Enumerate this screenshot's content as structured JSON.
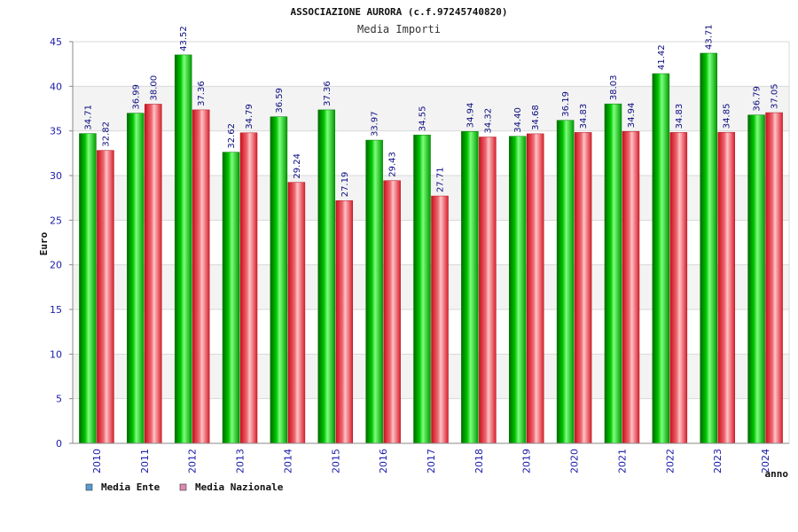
{
  "chart_data": {
    "type": "bar",
    "title": "ASSOCIAZIONE AURORA (c.f.97245740820)",
    "subtitle": "Media Importi",
    "ylabel": "Euro",
    "xlabel": "anno",
    "ylim": [
      0,
      45
    ],
    "yticks": [
      0,
      5,
      10,
      15,
      20,
      25,
      30,
      35,
      40,
      45
    ],
    "grid": true,
    "legend_position": "bottom-left",
    "categories": [
      "2010",
      "2011",
      "2012",
      "2013",
      "2014",
      "2015",
      "2016",
      "2017",
      "2018",
      "2019",
      "2020",
      "2021",
      "2022",
      "2023",
      "2024"
    ],
    "series": [
      {
        "name": "Media Ente",
        "legend_color": "#5b9bd5",
        "bar_color": "#00aa00",
        "values": [
          34.71,
          36.99,
          43.52,
          32.62,
          36.59,
          37.36,
          33.97,
          34.55,
          34.94,
          34.4,
          36.19,
          38.03,
          41.42,
          43.71,
          36.79
        ],
        "labels": [
          "34.71",
          "36.99",
          "43.52",
          "32.62",
          "36.59",
          "37.36",
          "33.97",
          "34.55",
          "34.94",
          "34.40",
          "36.19",
          "38.03",
          "41.42",
          "43.71",
          "36.79"
        ]
      },
      {
        "name": "Media Nazionale",
        "legend_color": "#e088b0",
        "bar_color": "#e0303a",
        "values": [
          32.82,
          38.0,
          37.36,
          34.79,
          29.24,
          27.19,
          29.43,
          27.71,
          34.32,
          34.68,
          34.83,
          34.94,
          34.83,
          34.85,
          37.05
        ],
        "labels": [
          "32.82",
          "38.00",
          "37.36",
          "34.79",
          "29.24",
          "27.19",
          "29.43",
          "27.71",
          "34.32",
          "34.68",
          "34.83",
          "34.94",
          "34.83",
          "34.85",
          "37.05"
        ]
      }
    ]
  }
}
